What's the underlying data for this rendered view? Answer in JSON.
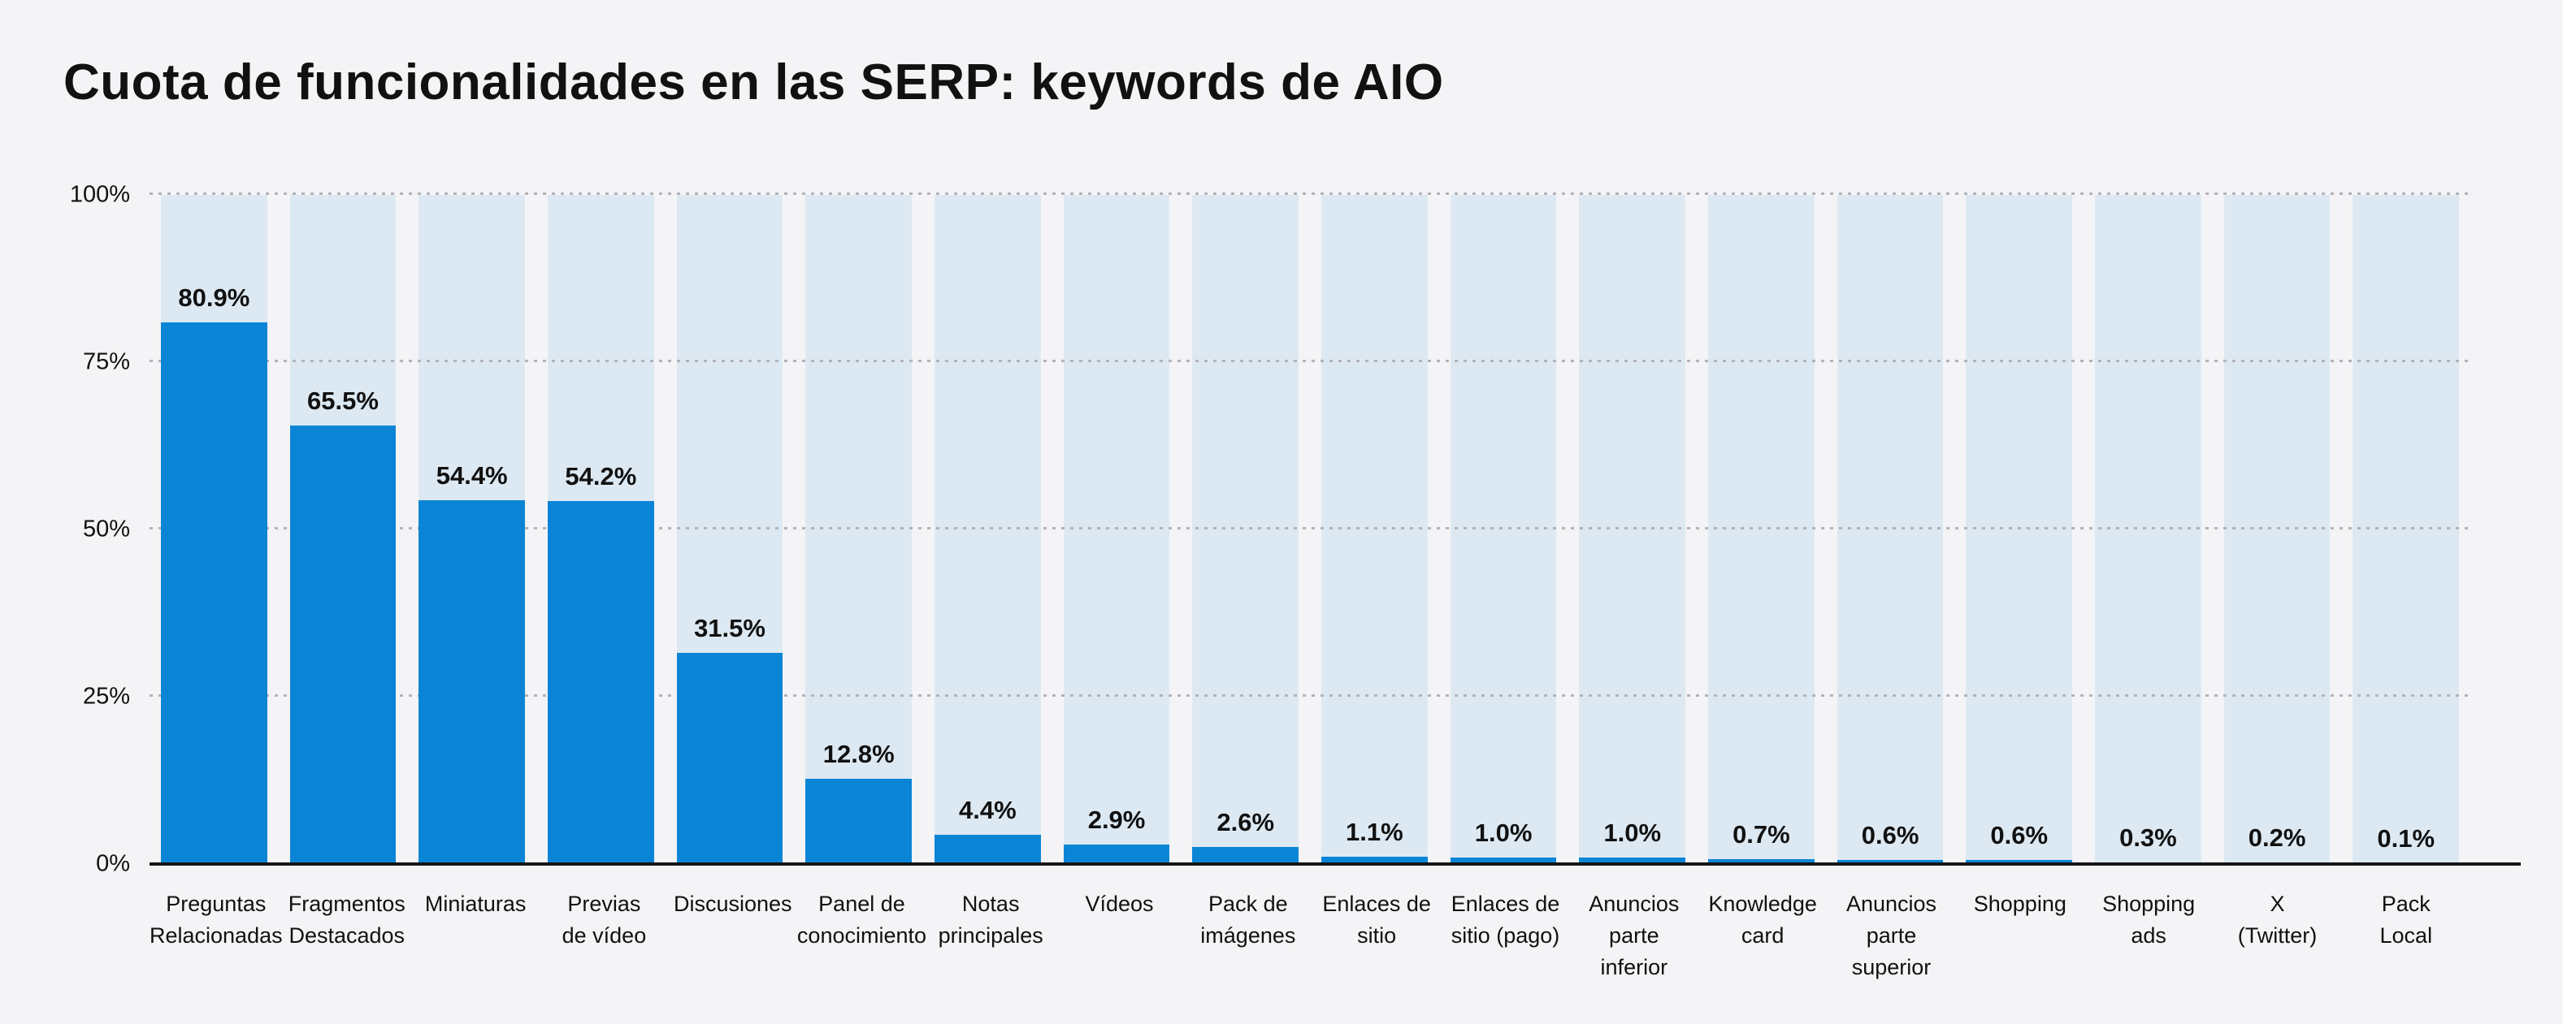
{
  "page": {
    "title": "Cuota de funcionalidades en las SERP: keywords de AIO"
  },
  "chart_data": {
    "type": "bar",
    "title": "Cuota de funcionalidades en las SERP: keywords de AIO",
    "categories": [
      "Preguntas\nRelacionadas",
      "Fragmentos\nDestacados",
      "Miniaturas",
      "Previas\nde vídeo",
      "Discusiones",
      "Panel de\nconocimiento",
      "Notas\nprincipales",
      "Vídeos",
      "Pack de\nimágenes",
      "Enlaces de\nsitio",
      "Enlaces de\nsitio (pago)",
      "Anuncios\nparte\ninferior",
      "Knowledge\ncard",
      "Anuncios\nparte\nsuperior",
      "Shopping",
      "Shopping\nads",
      "X\n(Twitter)",
      "Pack\nLocal"
    ],
    "values": [
      80.9,
      65.5,
      54.4,
      54.2,
      31.5,
      12.8,
      4.4,
      2.9,
      2.6,
      1.1,
      1.0,
      1.0,
      0.7,
      0.6,
      0.6,
      0.3,
      0.2,
      0.1
    ],
    "value_labels": [
      "80.9%",
      "65.5%",
      "54.4%",
      "54.2%",
      "31.5%",
      "12.8%",
      "4.4%",
      "2.9%",
      "2.6%",
      "1.1%",
      "1.0%",
      "1.0%",
      "0.7%",
      "0.6%",
      "0.6%",
      "0.3%",
      "0.2%",
      "0.1%"
    ],
    "xlabel": "",
    "ylabel": "",
    "ylim": [
      0,
      100
    ],
    "yticks": [
      0,
      25,
      50,
      75,
      100
    ],
    "ytick_labels": [
      "0%",
      "25%",
      "50%",
      "75%",
      "100%"
    ],
    "grid": "horizontal-dotted",
    "legend": "none",
    "colors": {
      "bar": "#0a85d6",
      "column_bg": "#dde9f2",
      "page_bg": "#f4f4f6",
      "grid": "#b3b3b8",
      "axis": "#151515",
      "text": "#111111"
    }
  }
}
